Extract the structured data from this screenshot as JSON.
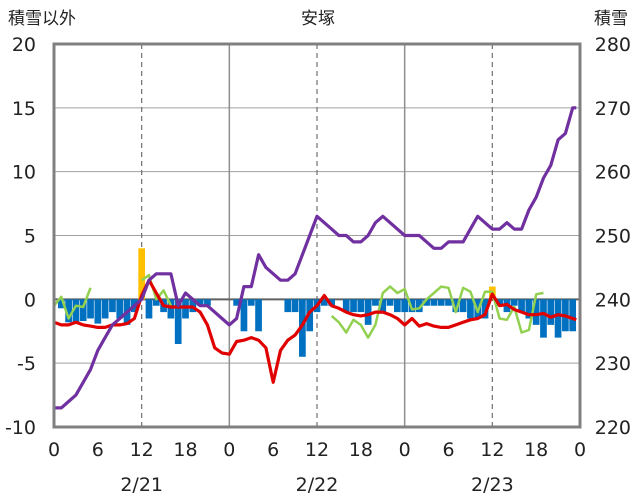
{
  "chart_data": {
    "type": "line",
    "title": "安塚",
    "ylabel_left": "積雪以外",
    "ylabel_right": "積雪",
    "ylim_left": [
      -10,
      20
    ],
    "ylim_right": [
      220,
      280
    ],
    "left_ticks": [
      "20",
      "15",
      "10",
      "5",
      "0",
      "-5",
      "-10"
    ],
    "right_ticks": [
      "280",
      "270",
      "260",
      "250",
      "240",
      "230",
      "220"
    ],
    "x_range_hours": [
      0,
      72
    ],
    "x_ticks": [
      {
        "h": 0,
        "label": "0"
      },
      {
        "h": 6,
        "label": "6"
      },
      {
        "h": 12,
        "label": "12"
      },
      {
        "h": 18,
        "label": "18"
      },
      {
        "h": 24,
        "label": "0"
      },
      {
        "h": 30,
        "label": "6"
      },
      {
        "h": 36,
        "label": "12"
      },
      {
        "h": 42,
        "label": "18"
      },
      {
        "h": 48,
        "label": "0"
      },
      {
        "h": 54,
        "label": "6"
      },
      {
        "h": 60,
        "label": "12"
      },
      {
        "h": 66,
        "label": "18"
      },
      {
        "h": 72,
        "label": "0"
      }
    ],
    "dates": [
      {
        "h": 12,
        "label": "2/21"
      },
      {
        "h": 36,
        "label": "2/22"
      },
      {
        "h": 60,
        "label": "2/23"
      }
    ],
    "colors": {
      "snow_depth": "#7030a0",
      "temperature": "#e00000",
      "green_series": "#92d050",
      "blue_bars": "#0070c0",
      "orange_bars": "#ffc000",
      "grid": "#808080",
      "frame": "#808080"
    },
    "snow_depth_right_axis": [
      [
        0,
        223
      ],
      [
        1,
        223
      ],
      [
        2,
        224
      ],
      [
        3,
        225
      ],
      [
        4,
        227
      ],
      [
        5,
        229
      ],
      [
        6,
        232
      ],
      [
        7,
        234
      ],
      [
        8,
        236
      ],
      [
        9,
        237
      ],
      [
        10,
        238
      ],
      [
        11,
        239
      ],
      [
        12,
        240
      ],
      [
        13,
        243
      ],
      [
        14,
        244
      ],
      [
        15,
        244
      ],
      [
        16,
        244
      ],
      [
        17,
        239
      ],
      [
        18,
        241
      ],
      [
        19,
        240
      ],
      [
        20,
        239
      ],
      [
        21,
        239
      ],
      [
        22,
        238
      ],
      [
        23,
        237
      ],
      [
        24,
        236
      ],
      [
        25,
        237
      ],
      [
        26,
        242
      ],
      [
        27,
        242
      ],
      [
        28,
        247
      ],
      [
        29,
        245
      ],
      [
        30,
        244
      ],
      [
        31,
        243
      ],
      [
        32,
        243
      ],
      [
        33,
        244
      ],
      [
        34,
        247
      ],
      [
        35,
        250
      ],
      [
        36,
        253
      ],
      [
        37,
        252
      ],
      [
        38,
        251
      ],
      [
        39,
        250
      ],
      [
        40,
        250
      ],
      [
        41,
        249
      ],
      [
        42,
        249
      ],
      [
        43,
        250
      ],
      [
        44,
        252
      ],
      [
        45,
        253
      ],
      [
        46,
        252
      ],
      [
        47,
        251
      ],
      [
        48,
        250
      ],
      [
        49,
        250
      ],
      [
        50,
        250
      ],
      [
        51,
        249
      ],
      [
        52,
        248
      ],
      [
        53,
        248
      ],
      [
        54,
        249
      ],
      [
        55,
        249
      ],
      [
        56,
        249
      ],
      [
        57,
        251
      ],
      [
        58,
        253
      ],
      [
        59,
        252
      ],
      [
        60,
        251
      ],
      [
        61,
        251
      ],
      [
        62,
        252
      ],
      [
        63,
        251
      ],
      [
        64,
        251
      ],
      [
        65,
        254
      ],
      [
        66,
        256
      ],
      [
        67,
        259
      ],
      [
        68,
        261
      ],
      [
        69,
        265
      ],
      [
        70,
        266
      ],
      [
        71,
        270
      ],
      [
        71.5,
        270
      ]
    ],
    "temperature": [
      [
        0,
        -1.8
      ],
      [
        1,
        -2.0
      ],
      [
        2,
        -2.0
      ],
      [
        3,
        -1.8
      ],
      [
        4,
        -2.0
      ],
      [
        5,
        -2.1
      ],
      [
        6,
        -2.2
      ],
      [
        7,
        -2.2
      ],
      [
        8,
        -2.0
      ],
      [
        9,
        -2.0
      ],
      [
        10,
        -1.9
      ],
      [
        11,
        -1.5
      ],
      [
        12,
        0.3
      ],
      [
        13,
        1.5
      ],
      [
        14,
        0.5
      ],
      [
        15,
        -0.5
      ],
      [
        16,
        -0.6
      ],
      [
        17,
        -0.6
      ],
      [
        18,
        -0.6
      ],
      [
        19,
        -0.6
      ],
      [
        20,
        -1.0
      ],
      [
        21,
        -2.0
      ],
      [
        22,
        -3.8
      ],
      [
        23,
        -4.2
      ],
      [
        24,
        -4.3
      ],
      [
        25,
        -3.3
      ],
      [
        26,
        -3.2
      ],
      [
        27,
        -3.0
      ],
      [
        28,
        -3.2
      ],
      [
        29,
        -3.8
      ],
      [
        30,
        -6.5
      ],
      [
        31,
        -4.0
      ],
      [
        32,
        -3.2
      ],
      [
        33,
        -2.8
      ],
      [
        34,
        -2.0
      ],
      [
        35,
        -1.0
      ],
      [
        36,
        -0.5
      ],
      [
        37,
        0.3
      ],
      [
        38,
        -0.5
      ],
      [
        39,
        -0.7
      ],
      [
        40,
        -1.0
      ],
      [
        41,
        -1.2
      ],
      [
        42,
        -1.3
      ],
      [
        43,
        -1.2
      ],
      [
        44,
        -1.0
      ],
      [
        45,
        -1.0
      ],
      [
        46,
        -1.2
      ],
      [
        47,
        -1.5
      ],
      [
        48,
        -2.0
      ],
      [
        49,
        -1.5
      ],
      [
        50,
        -2.1
      ],
      [
        51,
        -1.9
      ],
      [
        52,
        -2.1
      ],
      [
        53,
        -2.2
      ],
      [
        54,
        -2.2
      ],
      [
        55,
        -2.0
      ],
      [
        56,
        -1.8
      ],
      [
        57,
        -1.6
      ],
      [
        58,
        -1.5
      ],
      [
        59,
        -1.2
      ],
      [
        60,
        0.4
      ],
      [
        61,
        -0.5
      ],
      [
        62,
        -0.4
      ],
      [
        63,
        -0.8
      ],
      [
        64,
        -1.0
      ],
      [
        65,
        -1.2
      ],
      [
        66,
        -1.2
      ],
      [
        67,
        -1.1
      ],
      [
        68,
        -1.4
      ],
      [
        69,
        -1.2
      ],
      [
        70,
        -1.3
      ],
      [
        71,
        -1.5
      ],
      [
        71.5,
        -1.6
      ]
    ],
    "green_series": [
      [
        [
          0,
          -0.5
        ],
        [
          1,
          0.2
        ],
        [
          2,
          -1.5
        ],
        [
          3,
          -0.5
        ],
        [
          4,
          -0.6
        ],
        [
          5,
          0.9
        ]
      ],
      [
        [
          12,
          1.5
        ],
        [
          13,
          1.9
        ],
        [
          14,
          0.0
        ],
        [
          15,
          0.7
        ],
        [
          16,
          -0.5
        ]
      ],
      [
        [
          38,
          -1.3
        ],
        [
          39,
          -1.8
        ],
        [
          40,
          -2.6
        ],
        [
          41,
          -1.6
        ],
        [
          42,
          -2.0
        ],
        [
          43,
          -3.0
        ],
        [
          44,
          -2.0
        ],
        [
          45,
          0.5
        ],
        [
          46,
          1.0
        ],
        [
          47,
          0.5
        ],
        [
          48,
          0.8
        ],
        [
          49,
          -0.8
        ],
        [
          50,
          -0.7
        ],
        [
          51,
          0.0
        ],
        [
          52,
          0.5
        ],
        [
          53,
          1.0
        ],
        [
          54,
          0.9
        ],
        [
          55,
          -1.0
        ],
        [
          56,
          0.9
        ],
        [
          57,
          0.6
        ],
        [
          58,
          -1.0
        ],
        [
          59,
          0.6
        ],
        [
          60,
          0.6
        ],
        [
          61,
          -1.5
        ],
        [
          62,
          -1.6
        ],
        [
          63,
          -0.6
        ],
        [
          64,
          -2.6
        ],
        [
          65,
          -2.4
        ],
        [
          66,
          0.4
        ],
        [
          67,
          0.5
        ]
      ]
    ],
    "blue_bars": [
      [
        1,
        -0.7
      ],
      [
        2,
        -1.8
      ],
      [
        3,
        -1.9
      ],
      [
        4,
        -1.7
      ],
      [
        5,
        -1.5
      ],
      [
        6,
        -1.9
      ],
      [
        7,
        -1.5
      ],
      [
        8,
        -1.0
      ],
      [
        9,
        -1.5
      ],
      [
        10,
        -2.0
      ],
      [
        11,
        -1.0
      ],
      [
        13,
        -1.5
      ],
      [
        14,
        -0.5
      ],
      [
        15,
        -1.0
      ],
      [
        16,
        -1.5
      ],
      [
        17,
        -3.5
      ],
      [
        18,
        -1.5
      ],
      [
        19,
        -1.0
      ],
      [
        20,
        -0.5
      ],
      [
        21,
        -0.5
      ],
      [
        25,
        -0.5
      ],
      [
        26,
        -2.5
      ],
      [
        27,
        -0.5
      ],
      [
        28,
        -2.5
      ],
      [
        32,
        -1.0
      ],
      [
        33,
        -1.0
      ],
      [
        34,
        -4.5
      ],
      [
        35,
        -2.5
      ],
      [
        36,
        -1.0
      ],
      [
        37,
        -0.5
      ],
      [
        38,
        -0.5
      ],
      [
        40,
        -1.0
      ],
      [
        41,
        -1.0
      ],
      [
        42,
        -1.0
      ],
      [
        43,
        -2.0
      ],
      [
        44,
        -0.5
      ],
      [
        45,
        -1.0
      ],
      [
        46,
        -0.5
      ],
      [
        47,
        -1.0
      ],
      [
        48,
        -1.0
      ],
      [
        49,
        -1.0
      ],
      [
        50,
        -1.0
      ],
      [
        51,
        -0.5
      ],
      [
        52,
        -0.5
      ],
      [
        53,
        -0.5
      ],
      [
        54,
        -0.5
      ],
      [
        55,
        -1.0
      ],
      [
        56,
        -1.0
      ],
      [
        57,
        -1.5
      ],
      [
        58,
        -1.5
      ],
      [
        59,
        -1.5
      ],
      [
        61,
        -0.5
      ],
      [
        62,
        -1.0
      ],
      [
        63,
        -0.5
      ],
      [
        64,
        -1.0
      ],
      [
        65,
        -1.5
      ],
      [
        66,
        -2.0
      ],
      [
        67,
        -3.0
      ],
      [
        68,
        -2.0
      ],
      [
        69,
        -3.0
      ],
      [
        70,
        -2.5
      ],
      [
        71,
        -2.5
      ]
    ],
    "orange_bars": [
      [
        12,
        4.0
      ],
      [
        60,
        1.0
      ]
    ]
  }
}
